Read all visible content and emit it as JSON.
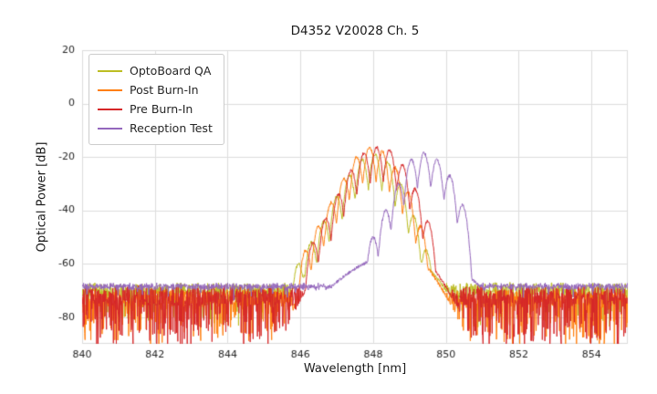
{
  "chart_data": {
    "type": "line",
    "title": "D4352 V20028 Ch. 5",
    "xlabel": "Wavelength [nm]",
    "ylabel": "Optical Power [dB]",
    "xlim": [
      840,
      855
    ],
    "ylim": [
      -90,
      20
    ],
    "xticks": [
      840,
      842,
      844,
      846,
      848,
      850,
      852,
      854
    ],
    "yticks": [
      20,
      0,
      -20,
      -40,
      -60,
      -80
    ],
    "grid": true,
    "legend_position": "upper left",
    "background": "#ffffff",
    "grid_color": "#dddddd",
    "tick_color": "#262626",
    "series": [
      {
        "name": "OptoBoard QA",
        "color": "#bcbd22",
        "noise": {
          "floor": -70,
          "jitter": 5,
          "deep_prob": 0.2,
          "deep_max": 12
        },
        "envelope": {
          "top": -50,
          "center": 847.9,
          "k": 4.5
        },
        "mode_width_nm": 0.05,
        "modes": [
          [
            845.95,
            -60
          ],
          [
            846.3,
            -52
          ],
          [
            846.65,
            -44
          ],
          [
            847.0,
            -35
          ],
          [
            847.35,
            -27
          ],
          [
            847.7,
            -21
          ],
          [
            848.05,
            -19
          ],
          [
            848.4,
            -22
          ],
          [
            848.75,
            -30
          ],
          [
            849.1,
            -42
          ],
          [
            849.45,
            -55
          ]
        ]
      },
      {
        "name": "Post Burn-In",
        "color": "#ff7f0e",
        "noise": {
          "floor": -73,
          "jitter": 6,
          "deep_prob": 0.3,
          "deep_max": 16
        },
        "envelope": {
          "top": -48,
          "center": 848.0,
          "k": 6
        },
        "mode_width_nm": 0.05,
        "modes": [
          [
            846.15,
            -55
          ],
          [
            846.5,
            -46
          ],
          [
            846.85,
            -37
          ],
          [
            847.2,
            -28
          ],
          [
            847.55,
            -20
          ],
          [
            847.9,
            -16.5
          ],
          [
            848.25,
            -18
          ],
          [
            848.6,
            -24
          ],
          [
            848.95,
            -33
          ],
          [
            849.3,
            -46
          ]
        ]
      },
      {
        "name": "Pre Burn-In",
        "color": "#d62728",
        "noise": {
          "floor": -72,
          "jitter": 7,
          "deep_prob": 0.35,
          "deep_max": 18
        },
        "envelope": {
          "top": -47,
          "center": 848.1,
          "k": 6
        },
        "mode_width_nm": 0.05,
        "modes": [
          [
            846.35,
            -52
          ],
          [
            846.7,
            -43
          ],
          [
            847.05,
            -34
          ],
          [
            847.4,
            -25
          ],
          [
            847.75,
            -18.5
          ],
          [
            848.1,
            -16.5
          ],
          [
            848.45,
            -17.5
          ],
          [
            848.8,
            -23
          ],
          [
            849.15,
            -32
          ],
          [
            849.5,
            -44
          ]
        ]
      },
      {
        "name": "Reception Test",
        "color": "#9467bd",
        "noise": {
          "floor": -68.5,
          "jitter": 1.8,
          "deep_prob": 0.05,
          "deep_max": 4
        },
        "envelope": {
          "top": -56,
          "center": 848.9,
          "k": 3
        },
        "mode_width_nm": 0.05,
        "modes": [
          [
            848.0,
            -50
          ],
          [
            848.35,
            -40
          ],
          [
            848.7,
            -30
          ],
          [
            849.05,
            -21
          ],
          [
            849.4,
            -18.5
          ],
          [
            849.75,
            -21
          ],
          [
            850.1,
            -27
          ],
          [
            850.45,
            -38
          ]
        ]
      }
    ]
  }
}
